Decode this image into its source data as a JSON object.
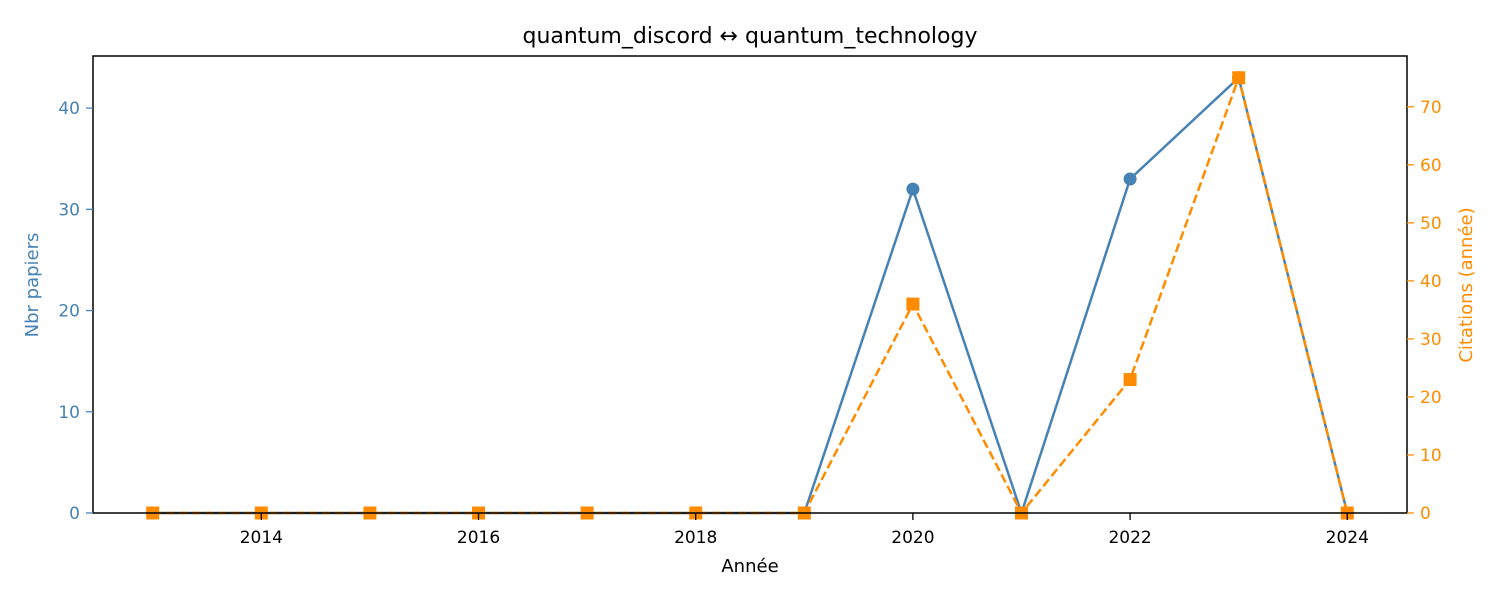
{
  "chart_data": {
    "type": "line",
    "title": "quantum_discord  ↔  quantum_technology",
    "xlabel": "Année",
    "ylabel_left": "Nbr papiers",
    "ylabel_right": "Citations (année)",
    "x": [
      2013,
      2014,
      2015,
      2016,
      2017,
      2018,
      2019,
      2020,
      2021,
      2022,
      2023,
      2024
    ],
    "xlim": [
      2012.45,
      2024.55
    ],
    "x_ticks": [
      2014,
      2016,
      2018,
      2020,
      2022,
      2024
    ],
    "ylim_left": [
      0,
      45.15
    ],
    "y_ticks_left": [
      0,
      10,
      20,
      30,
      40
    ],
    "ylim_right": [
      0,
      78.75
    ],
    "y_ticks_right": [
      0,
      10,
      20,
      30,
      40,
      50,
      60,
      70
    ],
    "grid": false,
    "series": [
      {
        "axis": "left",
        "color": "#4682B4",
        "style": "solid",
        "marker": "circle",
        "values": [
          0,
          0,
          0,
          0,
          0,
          0,
          0,
          32,
          0,
          33,
          43,
          0
        ]
      },
      {
        "axis": "right",
        "color": "#FF8C00",
        "style": "dashed",
        "marker": "square",
        "values": [
          0,
          0,
          0,
          0,
          0,
          0,
          0,
          36,
          0,
          23,
          75,
          0
        ]
      }
    ]
  }
}
